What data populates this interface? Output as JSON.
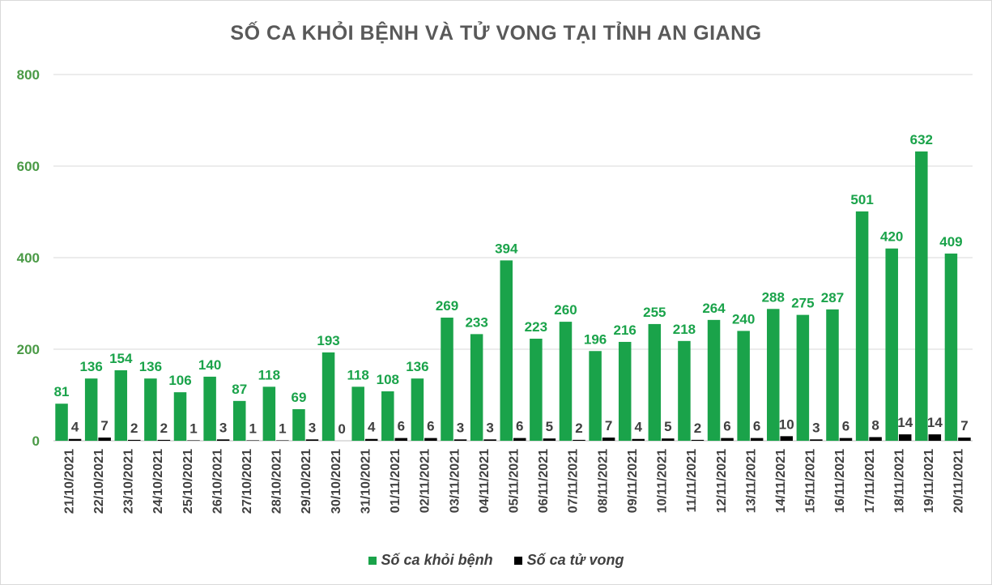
{
  "chart_data": {
    "type": "bar",
    "title": "SỐ CA KHỎI BỆNH VÀ TỬ VONG TẠI TỈNH AN GIANG",
    "xlabel": "",
    "ylabel": "",
    "ylim": [
      0,
      800
    ],
    "yticks": [
      "0",
      "200",
      "400",
      "600",
      "800"
    ],
    "grid": true,
    "legend_position": "bottom",
    "categories": [
      "21/10/2021",
      "22/10/2021",
      "23/10/2021",
      "24/10/2021",
      "25/10/2021",
      "26/10/2021",
      "27/10/2021",
      "28/10/2021",
      "29/10/2021",
      "30/10/2021",
      "31/10/2021",
      "01/11/2021",
      "02/11/2021",
      "03/11/2021",
      "04/11/2021",
      "05/11/2021",
      "06/11/2021",
      "07/11/2021",
      "08/11/2021",
      "09/11/2021",
      "10/11/2021",
      "11/11/2021",
      "12/11/2021",
      "13/11/2021",
      "14/11/2021",
      "15/11/2021",
      "16/11/2021",
      "17/11/2021",
      "18/11/2021",
      "19/11/2021",
      "20/11/2021"
    ],
    "series": [
      {
        "name": "Số ca khỏi bệnh",
        "color": "#1aa34a",
        "values": [
          81,
          136,
          154,
          136,
          106,
          140,
          87,
          118,
          69,
          193,
          118,
          108,
          136,
          269,
          233,
          394,
          223,
          260,
          196,
          216,
          255,
          218,
          264,
          240,
          288,
          275,
          287,
          501,
          420,
          632,
          409
        ]
      },
      {
        "name": "Số ca tử vong",
        "color": "#000000",
        "values": [
          4,
          7,
          2,
          2,
          1,
          3,
          1,
          1,
          3,
          0,
          4,
          6,
          6,
          3,
          3,
          6,
          5,
          2,
          7,
          4,
          5,
          2,
          6,
          6,
          10,
          3,
          6,
          8,
          14,
          14,
          7
        ]
      }
    ]
  }
}
